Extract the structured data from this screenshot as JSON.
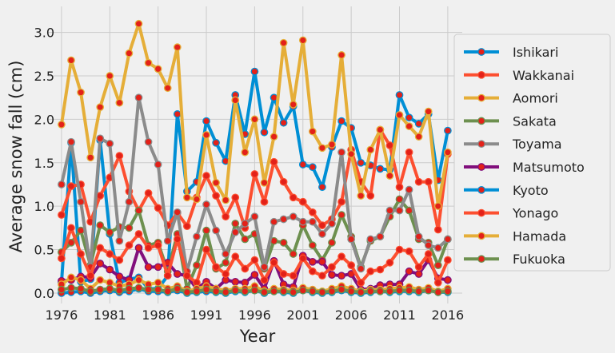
{
  "chart_data": {
    "type": "line",
    "xlabel": "Year",
    "ylabel": "Average snow fall (cm)",
    "xlim": [
      1974.6,
      2017.5
    ],
    "ylim": [
      -0.12,
      3.3
    ],
    "xticks": [
      1976,
      1981,
      1986,
      1991,
      1996,
      2001,
      2006,
      2011,
      2016
    ],
    "yticks": [
      0.0,
      0.5,
      1.0,
      1.5,
      2.0,
      2.5,
      3.0
    ],
    "ytick_labels": [
      "0.0",
      "0.5",
      "1.0",
      "1.5",
      "2.0",
      "2.5",
      "3.0"
    ],
    "grid": true,
    "legend_position": "right",
    "marker_color": "#e32119",
    "x": [
      1976,
      1977,
      1978,
      1979,
      1980,
      1981,
      1982,
      1983,
      1984,
      1985,
      1986,
      1987,
      1988,
      1989,
      1990,
      1991,
      1992,
      1993,
      1994,
      1995,
      1996,
      1997,
      1998,
      1999,
      2000,
      2001,
      2002,
      2003,
      2004,
      2005,
      2006,
      2007,
      2008,
      2009,
      2010,
      2011,
      2012,
      2013,
      2014,
      2015,
      2016
    ],
    "series": [
      {
        "name": "Ishikari",
        "color": "#008fd5",
        "values": [
          0.12,
          1.73,
          0.13,
          0.16,
          1.76,
          0.68,
          0.12,
          0.16,
          0.18,
          0.05,
          0.05,
          0.2,
          2.06,
          1.17,
          1.28,
          1.98,
          1.73,
          1.52,
          2.28,
          1.83,
          2.55,
          1.85,
          2.25,
          1.96,
          2.15,
          1.48,
          1.45,
          1.22,
          1.68,
          1.98,
          1.9,
          1.5,
          1.47,
          1.43,
          1.42,
          2.28,
          2.02,
          1.95,
          2.06,
          1.3,
          1.87
        ]
      },
      {
        "name": "Wakkanai",
        "color": "#fc4f30",
        "values": [
          0.9,
          1.23,
          1.25,
          0.82,
          1.12,
          1.33,
          1.58,
          1.17,
          0.95,
          1.15,
          0.98,
          0.78,
          0.92,
          0.77,
          1.1,
          1.35,
          1.12,
          0.88,
          1.1,
          0.75,
          1.37,
          1.05,
          1.51,
          1.28,
          1.1,
          1.05,
          0.93,
          0.78,
          0.85,
          1.05,
          1.65,
          1.28,
          1.12,
          1.88,
          1.7,
          1.22,
          1.62,
          1.28,
          1.28,
          0.73,
          1.6
        ]
      },
      {
        "name": "Aomori",
        "color": "#e5ae38",
        "values": [
          1.94,
          2.68,
          2.31,
          1.56,
          2.14,
          2.5,
          2.19,
          2.76,
          3.1,
          2.65,
          2.58,
          2.36,
          2.83,
          1.1,
          1.08,
          1.82,
          1.27,
          1.07,
          2.22,
          1.62,
          2.0,
          1.27,
          1.8,
          2.88,
          2.17,
          2.91,
          1.86,
          1.67,
          1.71,
          2.74,
          1.6,
          1.12,
          1.65,
          1.88,
          1.35,
          2.05,
          1.92,
          1.8,
          2.09,
          1.0,
          1.62
        ]
      },
      {
        "name": "Sakata",
        "color": "#6d904f",
        "values": [
          0.47,
          0.58,
          0.72,
          0.32,
          0.78,
          0.7,
          0.76,
          0.75,
          0.95,
          0.55,
          0.58,
          0.25,
          0.68,
          0.05,
          0.32,
          0.72,
          0.28,
          0.35,
          0.8,
          0.62,
          0.68,
          0.28,
          0.6,
          0.58,
          0.45,
          0.78,
          0.55,
          0.38,
          0.58,
          0.9,
          0.65,
          0.3,
          0.6,
          0.65,
          0.88,
          1.08,
          0.95,
          0.62,
          0.58,
          0.32,
          0.62
        ]
      },
      {
        "name": "Toyama",
        "color": "#8b8b8b",
        "values": [
          1.25,
          1.74,
          1.05,
          0.3,
          1.78,
          1.72,
          0.6,
          1.05,
          2.25,
          1.74,
          1.48,
          0.6,
          0.93,
          0.25,
          0.65,
          1.02,
          0.72,
          0.45,
          0.7,
          0.8,
          0.88,
          0.3,
          0.82,
          0.85,
          0.88,
          0.82,
          0.82,
          0.68,
          0.8,
          1.62,
          0.62,
          0.28,
          0.62,
          0.65,
          0.95,
          0.95,
          1.19,
          0.65,
          0.55,
          0.52,
          0.62
        ]
      },
      {
        "name": "Matsumoto",
        "color": "#810f7c",
        "values": [
          0.14,
          0.15,
          0.19,
          0.18,
          0.34,
          0.27,
          0.19,
          0.15,
          0.52,
          0.3,
          0.3,
          0.35,
          0.22,
          0.2,
          0.05,
          0.13,
          0.05,
          0.15,
          0.13,
          0.12,
          0.21,
          0.05,
          0.37,
          0.1,
          0.07,
          0.43,
          0.36,
          0.36,
          0.21,
          0.2,
          0.22,
          0.04,
          0.05,
          0.09,
          0.1,
          0.1,
          0.25,
          0.22,
          0.38,
          0.17,
          0.15
        ]
      },
      {
        "name": "Kyoto",
        "color": "#008fd5",
        "values": [
          0.0,
          0.01,
          0.02,
          0.0,
          0.02,
          0.03,
          0.01,
          0.02,
          0.05,
          0.02,
          0.02,
          0.01,
          0.03,
          0.0,
          0.01,
          0.02,
          0.01,
          0.0,
          0.02,
          0.01,
          0.03,
          0.0,
          0.02,
          0.01,
          0.0,
          0.03,
          0.01,
          0.0,
          0.01,
          0.03,
          0.01,
          0.0,
          0.01,
          0.02,
          0.01,
          0.02,
          0.02,
          0.01,
          0.03,
          0.01,
          0.01
        ]
      },
      {
        "name": "Yonago",
        "color": "#fc4f30",
        "values": [
          0.4,
          0.75,
          0.45,
          0.2,
          0.52,
          0.45,
          0.38,
          0.55,
          0.68,
          0.52,
          0.55,
          0.2,
          0.62,
          0.2,
          0.12,
          0.5,
          0.3,
          0.22,
          0.42,
          0.28,
          0.38,
          0.15,
          0.35,
          0.22,
          0.2,
          0.4,
          0.25,
          0.2,
          0.3,
          0.42,
          0.32,
          0.12,
          0.25,
          0.27,
          0.35,
          0.5,
          0.48,
          0.3,
          0.45,
          0.12,
          0.38
        ]
      },
      {
        "name": "Hamada",
        "color": "#e5ae38",
        "values": [
          0.1,
          0.18,
          0.15,
          0.05,
          0.15,
          0.12,
          0.08,
          0.1,
          0.15,
          0.1,
          0.12,
          0.05,
          0.08,
          0.02,
          0.05,
          0.08,
          0.05,
          0.03,
          0.05,
          0.05,
          0.08,
          0.02,
          0.05,
          0.04,
          0.03,
          0.06,
          0.04,
          0.02,
          0.05,
          0.08,
          0.05,
          0.02,
          0.04,
          0.04,
          0.05,
          0.06,
          0.07,
          0.04,
          0.06,
          0.02,
          0.05
        ]
      },
      {
        "name": "Fukuoka",
        "color": "#6d904f",
        "values": [
          0.04,
          0.06,
          0.05,
          0.02,
          0.04,
          0.05,
          0.03,
          0.05,
          0.06,
          0.04,
          0.04,
          0.02,
          0.05,
          0.01,
          0.02,
          0.04,
          0.02,
          0.01,
          0.03,
          0.02,
          0.03,
          0.01,
          0.02,
          0.02,
          0.01,
          0.03,
          0.02,
          0.01,
          0.02,
          0.04,
          0.02,
          0.01,
          0.02,
          0.02,
          0.02,
          0.03,
          0.03,
          0.02,
          0.03,
          0.01,
          0.02
        ]
      }
    ]
  }
}
